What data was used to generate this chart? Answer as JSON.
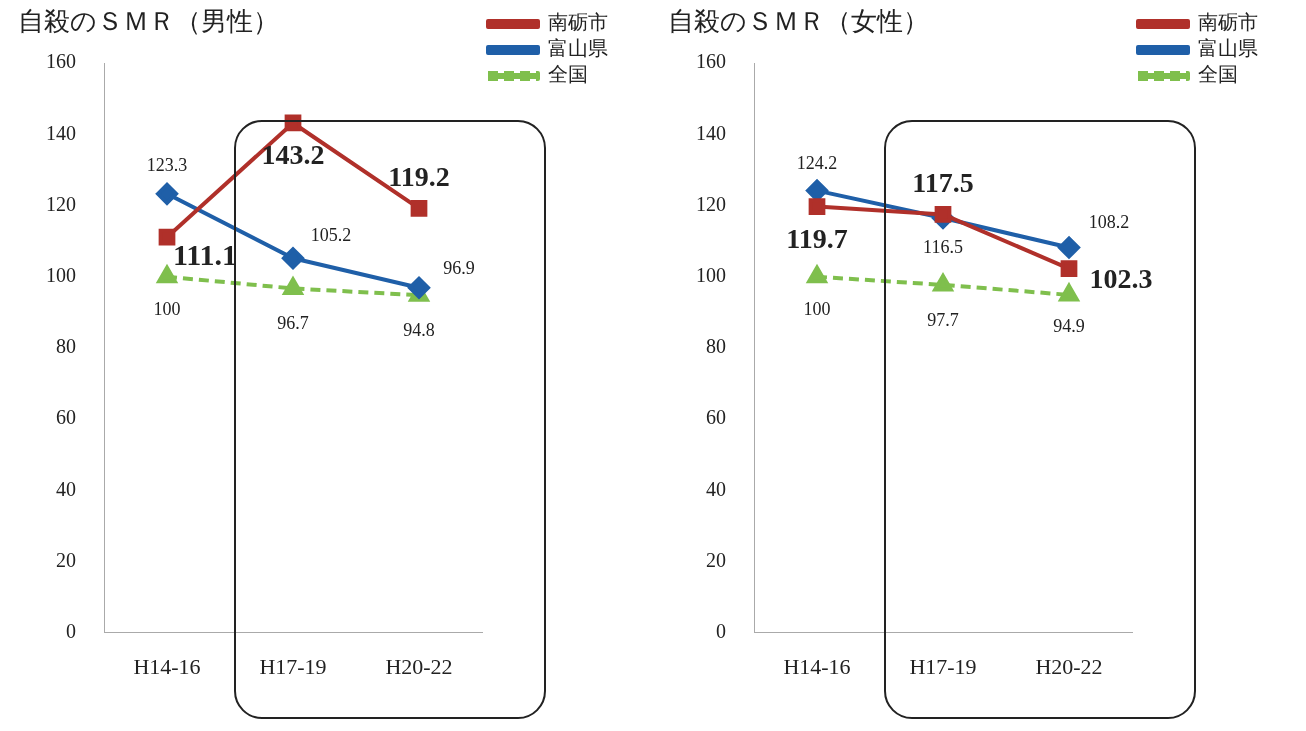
{
  "chart_data": [
    {
      "type": "line",
      "title": "自殺のＳＭＲ（男性）",
      "categories": [
        "H14-16",
        "H17-19",
        "H20-22"
      ],
      "ylim": [
        0,
        160
      ],
      "yticks": [
        0,
        20,
        40,
        60,
        80,
        100,
        120,
        140,
        160
      ],
      "grid": false,
      "legend": "top right",
      "data_labels": true,
      "series": [
        {
          "name": "南砺市",
          "color": "#b0302a",
          "values": [
            111.1,
            143.2,
            119.2
          ],
          "marker": "square",
          "line_style": "solid"
        },
        {
          "name": "富山県",
          "color": "#1f5fa8",
          "values": [
            123.3,
            105.2,
            96.9
          ],
          "marker": "diamond",
          "line_style": "solid"
        },
        {
          "name": "全国",
          "color": "#7fbf4d",
          "values": [
            100,
            96.7,
            94.8
          ],
          "marker": "triangle",
          "line_style": "dashed"
        }
      ]
    },
    {
      "type": "line",
      "title": "自殺のＳＭＲ（女性）",
      "categories": [
        "H14-16",
        "H17-19",
        "H20-22"
      ],
      "ylim": [
        0,
        160
      ],
      "yticks": [
        0,
        20,
        40,
        60,
        80,
        100,
        120,
        140,
        160
      ],
      "grid": false,
      "legend": "top right",
      "data_labels": true,
      "series": [
        {
          "name": "南砺市",
          "color": "#b0302a",
          "values": [
            119.7,
            117.5,
            102.3
          ],
          "marker": "square",
          "line_style": "solid"
        },
        {
          "name": "富山県",
          "color": "#1f5fa8",
          "values": [
            124.2,
            116.5,
            108.2
          ],
          "marker": "diamond",
          "line_style": "solid"
        },
        {
          "name": "全国",
          "color": "#7fbf4d",
          "values": [
            100,
            97.7,
            94.9
          ],
          "marker": "triangle",
          "line_style": "dashed"
        }
      ]
    }
  ]
}
